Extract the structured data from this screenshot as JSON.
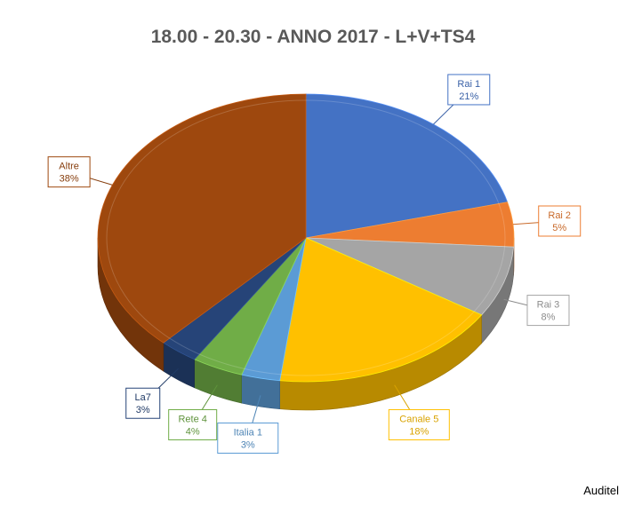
{
  "chart_data": {
    "type": "pie",
    "title": "18.00 - 20.30 - ANNO 2017 - L+V+TS4",
    "slices": [
      {
        "label": "Rai 1",
        "value_label": "21%",
        "value": 21,
        "color": "#4472C4"
      },
      {
        "label": "Rai 2",
        "value_label": "5%",
        "value": 5,
        "color": "#ED7D31"
      },
      {
        "label": "Rai 3",
        "value_label": "8%",
        "value": 8,
        "color": "#A5A5A5"
      },
      {
        "label": "Canale 5",
        "value_label": "18%",
        "value": 18,
        "color": "#FFC000"
      },
      {
        "label": "Italia 1",
        "value_label": "3%",
        "value": 3,
        "color": "#5B9BD5"
      },
      {
        "label": "Rete 4",
        "value_label": "4%",
        "value": 4,
        "color": "#70AD47"
      },
      {
        "label": "La7",
        "value_label": "3%",
        "value": 3,
        "color": "#264478"
      },
      {
        "label": "Altre",
        "value_label": "38%",
        "value": 38,
        "color": "#9E480E"
      }
    ]
  },
  "footer": {
    "source": "Auditel"
  }
}
